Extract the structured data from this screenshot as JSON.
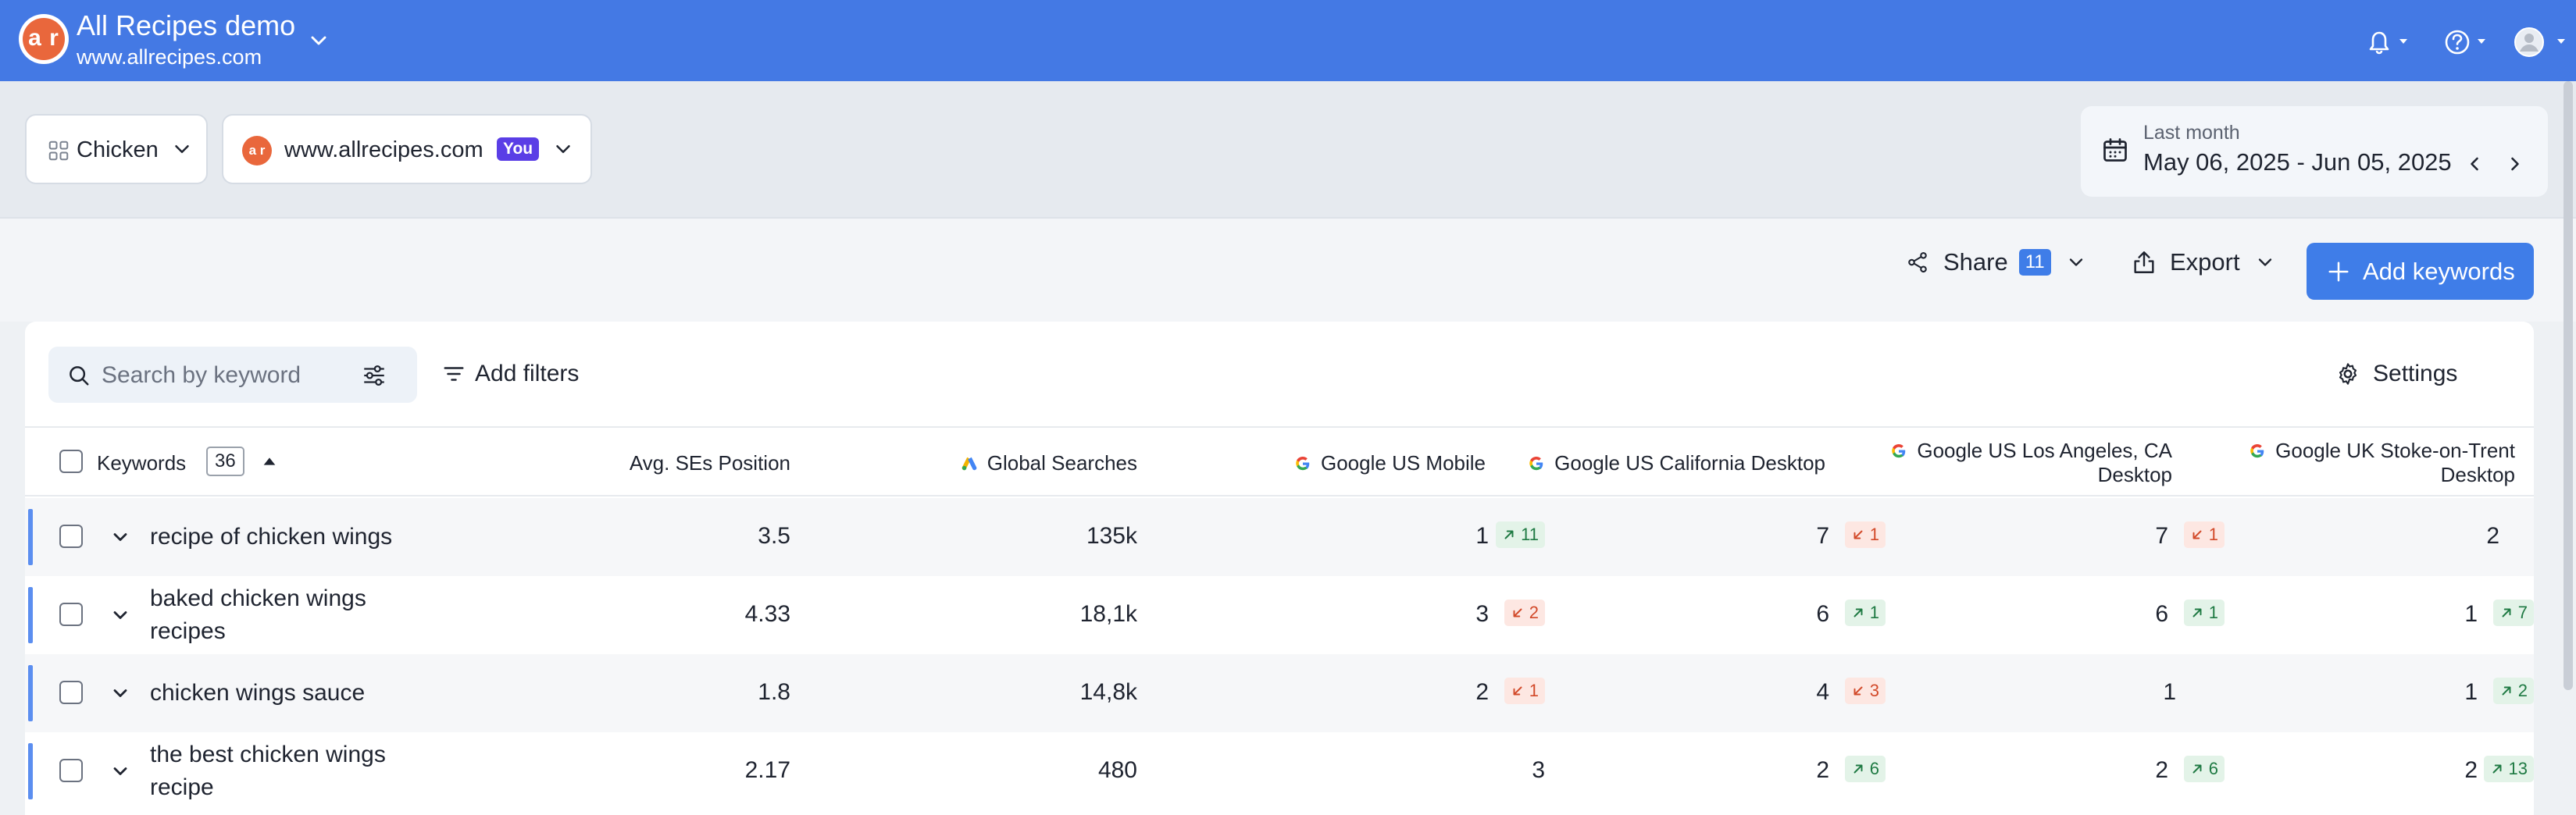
{
  "project": {
    "title": "All Recipes demo",
    "domain": "www.allrecipes.com",
    "logo_text": "a r"
  },
  "filters": {
    "group": "Chicken",
    "site": "www.allrecipes.com",
    "site_badge": "You",
    "date_label": "Last month",
    "date_range": "May 06, 2025 - Jun 05, 2025"
  },
  "actions": {
    "share": "Share",
    "share_count": "11",
    "export": "Export",
    "add_keywords": "Add keywords"
  },
  "toolbar": {
    "search_placeholder": "Search by keyword",
    "add_filters": "Add filters",
    "settings": "Settings"
  },
  "table": {
    "col_keywords": "Keywords",
    "keyword_count": "36",
    "col_avg": "Avg. SEs Position",
    "col_global": "Global Searches",
    "col_mobile": "Google US Mobile",
    "col_california": "Google US California Desktop",
    "col_la_1": "Google US Los Angeles, CA",
    "col_la_2": "Desktop",
    "col_uk_1": "Google UK Stoke-on-Trent",
    "col_uk_2": "Desktop",
    "rows": [
      {
        "keyword": "recipe of chicken wings",
        "avg": "3.5",
        "global": "135k",
        "mobile": "1",
        "mobile_chg": "11",
        "cal": "7",
        "cal_chg": "1",
        "la": "7",
        "la_chg": "1",
        "uk": "2",
        "uk_chg": ""
      },
      {
        "keyword": "baked chicken wings recipes",
        "avg": "4.33",
        "global": "18,1k",
        "mobile": "3",
        "mobile_chg": "2",
        "cal": "6",
        "cal_chg": "1",
        "la": "6",
        "la_chg": "1",
        "uk": "1",
        "uk_chg": "7"
      },
      {
        "keyword": "chicken wings sauce",
        "avg": "1.8",
        "global": "14,8k",
        "mobile": "2",
        "mobile_chg": "1",
        "cal": "4",
        "cal_chg": "3",
        "la": "1",
        "la_chg": "",
        "uk": "1",
        "uk_chg": "2"
      },
      {
        "keyword": "the best chicken wings recipe",
        "avg": "2.17",
        "global": "480",
        "mobile": "3",
        "mobile_chg": "",
        "cal": "2",
        "cal_chg": "6",
        "la": "2",
        "la_chg": "6",
        "uk": "2",
        "uk_chg": "13"
      }
    ]
  },
  "colors": {
    "brand": "#4479e4",
    "accent": "#3f7de8",
    "up": "#1f7a43",
    "down": "#d24a2a",
    "you_badge": "#5a3ee6"
  }
}
